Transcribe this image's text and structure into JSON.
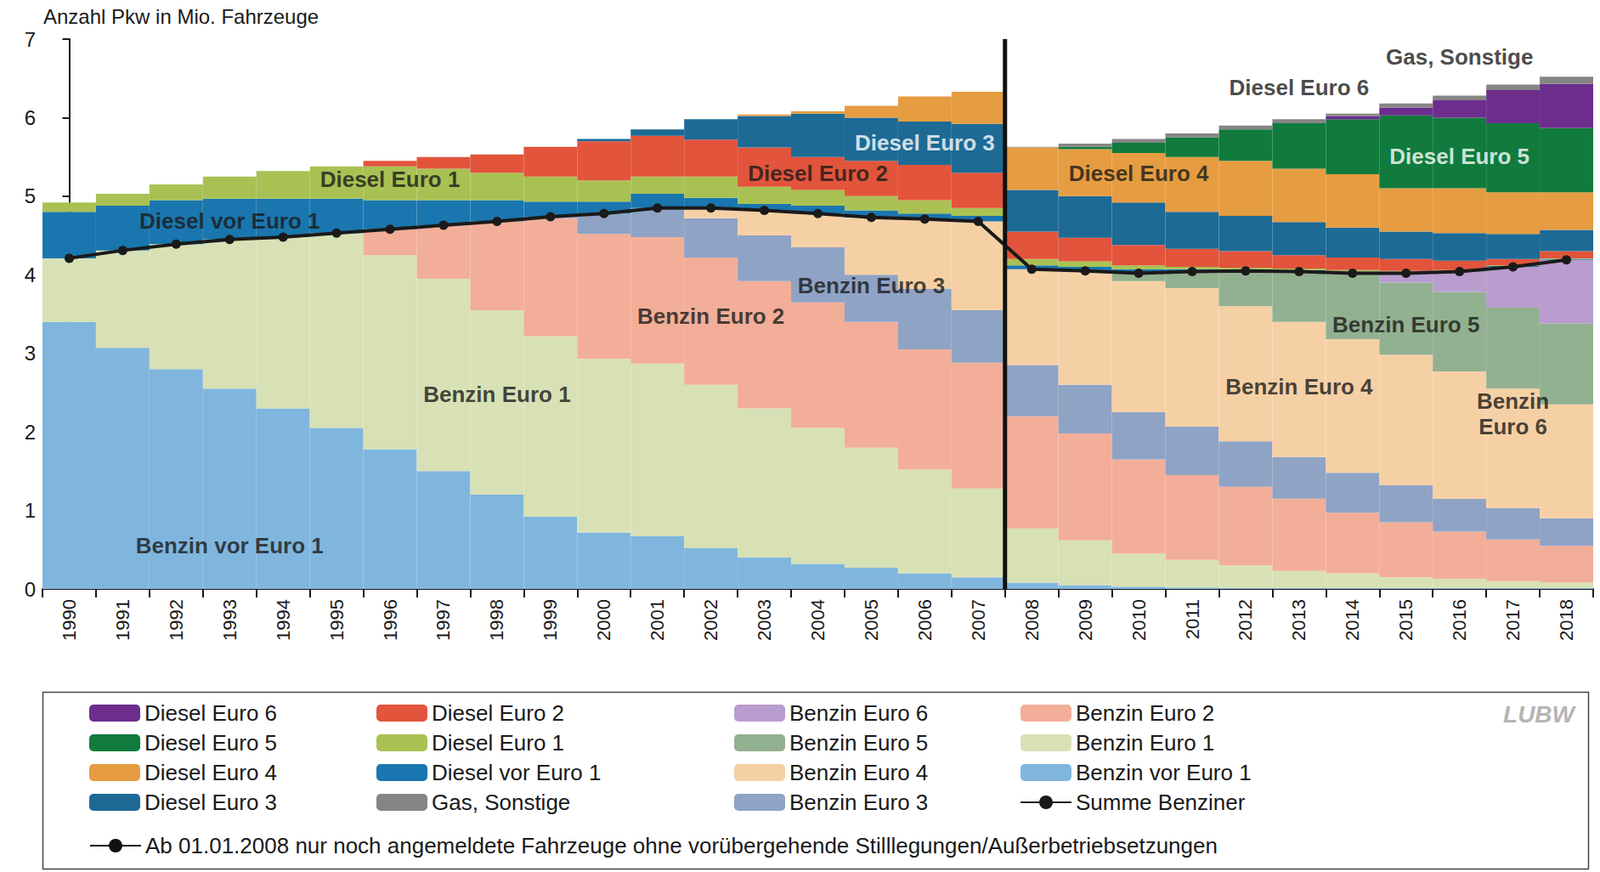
{
  "chart_data": {
    "type": "bar",
    "y_label": "Anzahl Pkw in Mio. Fahrzeuge",
    "source": "LUBW",
    "stacked": true,
    "grid": false,
    "legend": "bottom",
    "ylim": [
      0,
      7
    ],
    "yticks": [
      0,
      1,
      2,
      3,
      4,
      5,
      6,
      7
    ],
    "categories": [
      "1990",
      "1991",
      "1992",
      "1993",
      "1994",
      "1995",
      "1996",
      "1997",
      "1998",
      "1999",
      "2000",
      "2001",
      "2002",
      "2003",
      "2004",
      "2005",
      "2006",
      "2007",
      "2008",
      "2009",
      "2010",
      "2011",
      "2012",
      "2013",
      "2014",
      "2015",
      "2016",
      "2017",
      "2018"
    ],
    "series": [
      {
        "name": "Benzin vor Euro 1",
        "color": "#80b6de",
        "values": [
          3.4,
          3.07,
          2.8,
          2.55,
          2.3,
          2.05,
          1.78,
          1.5,
          1.2,
          0.92,
          0.72,
          0.67,
          0.52,
          0.4,
          0.32,
          0.27,
          0.2,
          0.15,
          0.08,
          0.05,
          0.03,
          0.02,
          0.01,
          0.01,
          0.01,
          0.01,
          0.01,
          0.01,
          0.01
        ]
      },
      {
        "name": "Benzin Euro 1",
        "color": "#d8e1b5",
        "values": [
          0.81,
          1.24,
          1.59,
          1.9,
          2.18,
          2.48,
          2.47,
          2.45,
          2.35,
          2.3,
          2.21,
          2.2,
          2.08,
          1.9,
          1.73,
          1.53,
          1.32,
          1.13,
          0.69,
          0.57,
          0.42,
          0.35,
          0.29,
          0.22,
          0.19,
          0.14,
          0.12,
          0.09,
          0.07
        ]
      },
      {
        "name": "Benzin Euro 2",
        "color": "#f2ae99",
        "values": [
          0,
          0,
          0,
          0,
          0,
          0,
          0.33,
          0.68,
          1.13,
          1.5,
          1.59,
          1.61,
          1.62,
          1.62,
          1.6,
          1.6,
          1.53,
          1.6,
          1.43,
          1.36,
          1.2,
          1.08,
          1.0,
          0.92,
          0.77,
          0.7,
          0.6,
          0.53,
          0.47
        ]
      },
      {
        "name": "Benzin Euro 3",
        "color": "#8fa3c5",
        "values": [
          0,
          0,
          0,
          0,
          0,
          0,
          0,
          0,
          0,
          0.02,
          0.26,
          0.37,
          0.5,
          0.58,
          0.7,
          0.6,
          0.77,
          0.67,
          0.65,
          0.62,
          0.6,
          0.62,
          0.58,
          0.53,
          0.51,
          0.47,
          0.42,
          0.4,
          0.35
        ]
      },
      {
        "name": "Benzin Euro 4",
        "color": "#f6d0a5",
        "values": [
          0,
          0,
          0,
          0,
          0,
          0,
          0,
          0,
          0,
          0,
          0,
          0,
          0.13,
          0.32,
          0.43,
          0.73,
          0.89,
          1.13,
          1.22,
          1.44,
          1.67,
          1.76,
          1.72,
          1.72,
          1.7,
          1.66,
          1.62,
          1.52,
          1.45
        ]
      },
      {
        "name": "Benzin Euro 5",
        "color": "#92b190",
        "values": [
          0,
          0,
          0,
          0,
          0,
          0,
          0,
          0,
          0,
          0,
          0,
          0,
          0,
          0,
          0,
          0,
          0,
          0,
          0,
          0.01,
          0.1,
          0.21,
          0.45,
          0.64,
          0.83,
          0.92,
          1.01,
          1.03,
          1.03
        ]
      },
      {
        "name": "Benzin Euro 6",
        "color": "#b89dce",
        "values": [
          0,
          0,
          0,
          0,
          0,
          0,
          0,
          0,
          0,
          0,
          0,
          0,
          0,
          0,
          0,
          0,
          0,
          0,
          0,
          0,
          0,
          0,
          0,
          0,
          0.01,
          0.12,
          0.26,
          0.52,
          0.81
        ]
      },
      {
        "name": "Diesel vor Euro 1",
        "color": "#1a76ae",
        "values": [
          0.59,
          0.57,
          0.56,
          0.52,
          0.49,
          0.44,
          0.37,
          0.32,
          0.27,
          0.19,
          0.15,
          0.18,
          0.13,
          0.08,
          0.1,
          0.09,
          0.07,
          0.07,
          0.05,
          0.05,
          0.05,
          0.03,
          0.02,
          0.02,
          0.02,
          0.02,
          0.01,
          0.01,
          0.01
        ]
      },
      {
        "name": "Diesel Euro 1",
        "color": "#a9c153",
        "values": [
          0.12,
          0.15,
          0.2,
          0.28,
          0.35,
          0.41,
          0.43,
          0.4,
          0.35,
          0.32,
          0.27,
          0.22,
          0.27,
          0.22,
          0.2,
          0.18,
          0.17,
          0.1,
          0.08,
          0.07,
          0.05,
          0.03,
          0.02,
          0.02,
          0.02,
          0.01,
          0.01,
          0.01,
          0.01
        ]
      },
      {
        "name": "Diesel Euro 2",
        "color": "#e2543b",
        "values": [
          0,
          0,
          0,
          0,
          0,
          0,
          0.07,
          0.15,
          0.23,
          0.38,
          0.5,
          0.52,
          0.47,
          0.5,
          0.42,
          0.45,
          0.45,
          0.45,
          0.35,
          0.3,
          0.26,
          0.23,
          0.21,
          0.17,
          0.16,
          0.15,
          0.12,
          0.08,
          0.09
        ]
      },
      {
        "name": "Diesel Euro 3",
        "color": "#1d6a95",
        "values": [
          0,
          0,
          0,
          0,
          0,
          0,
          0,
          0,
          0,
          0,
          0.03,
          0.08,
          0.26,
          0.4,
          0.55,
          0.55,
          0.55,
          0.62,
          0.53,
          0.53,
          0.54,
          0.47,
          0.45,
          0.42,
          0.38,
          0.35,
          0.35,
          0.32,
          0.27
        ]
      },
      {
        "name": "Diesel Euro 4",
        "color": "#e69c40",
        "values": [
          0,
          0,
          0,
          0,
          0,
          0,
          0,
          0,
          0,
          0,
          0,
          0,
          0,
          0.02,
          0.03,
          0.15,
          0.32,
          0.41,
          0.54,
          0.6,
          0.63,
          0.7,
          0.7,
          0.68,
          0.68,
          0.55,
          0.57,
          0.53,
          0.48
        ]
      },
      {
        "name": "Diesel Euro 5",
        "color": "#107b3d",
        "values": [
          0,
          0,
          0,
          0,
          0,
          0,
          0,
          0,
          0,
          0,
          0,
          0,
          0,
          0,
          0,
          0,
          0,
          0,
          0,
          0.03,
          0.13,
          0.25,
          0.4,
          0.58,
          0.7,
          0.93,
          0.9,
          0.88,
          0.82
        ]
      },
      {
        "name": "Diesel Euro 6",
        "color": "#6c2d8d",
        "values": [
          0,
          0,
          0,
          0,
          0,
          0,
          0,
          0,
          0,
          0,
          0,
          0,
          0,
          0,
          0,
          0,
          0,
          0,
          0,
          0,
          0,
          0,
          0,
          0,
          0.04,
          0.1,
          0.22,
          0.42,
          0.56
        ]
      },
      {
        "name": "Gas, Sonstige",
        "color": "#858585",
        "values": [
          0,
          0,
          0,
          0,
          0,
          0,
          0,
          0,
          0,
          0,
          0,
          0,
          0,
          0,
          0,
          0,
          0,
          0,
          0.01,
          0.04,
          0.05,
          0.05,
          0.05,
          0.05,
          0.03,
          0.05,
          0.06,
          0.07,
          0.09
        ]
      },
      {
        "name": "Summe Benziner",
        "type": "line",
        "marker": "circle",
        "color": "#1a1a1a",
        "values": [
          4.21,
          4.31,
          4.39,
          4.45,
          4.48,
          4.53,
          4.58,
          4.63,
          4.68,
          4.74,
          4.78,
          4.85,
          4.85,
          4.82,
          4.78,
          4.73,
          4.71,
          4.68,
          4.07,
          4.05,
          4.02,
          4.04,
          4.05,
          4.04,
          4.02,
          4.02,
          4.04,
          4.1,
          4.19
        ]
      }
    ],
    "note": {
      "text": "Ab 01.01.2008 nur noch angemeldete Fahrzeuge ohne vorübergehende Stilllegungen/Außerbetriebsetzungen",
      "x": "2008"
    },
    "annotations": [
      {
        "text": "Benzin vor Euro 1",
        "x": "1993",
        "y": 0.55
      },
      {
        "text": "Benzin Euro 1",
        "x": "1998",
        "y": 2.48
      },
      {
        "text": "Benzin Euro 2",
        "x": "2002",
        "y": 3.47
      },
      {
        "text": "Benzin Euro 3",
        "x": "2005",
        "y": 3.86
      },
      {
        "text": "Diesel vor Euro 1",
        "x": "1993",
        "y": 4.68
      },
      {
        "text": "Diesel Euro 1",
        "x": "1996",
        "y": 5.22
      },
      {
        "text": "Diesel Euro 2",
        "x": "2004",
        "y": 5.29
      },
      {
        "text": "Diesel Euro 3",
        "x": "2006",
        "y": 5.68
      },
      {
        "text": "Diesel Euro 4",
        "x": "2010",
        "y": 5.29
      },
      {
        "text": "Benzin Euro 4",
        "x": "2013",
        "y": 2.57
      },
      {
        "text": "Benzin Euro 5",
        "x": "2015",
        "y": 3.36
      },
      {
        "text": "Diesel Euro 5",
        "x": "2016",
        "y": 5.51
      },
      {
        "text": "Benzin\nEuro 6",
        "x": "2017",
        "y": 2.23
      },
      {
        "text": "Diesel Euro 6",
        "x": "2013",
        "y": 6.38
      },
      {
        "text": "Gas, Sonstige",
        "x": "2016",
        "y": 6.77
      }
    ]
  }
}
